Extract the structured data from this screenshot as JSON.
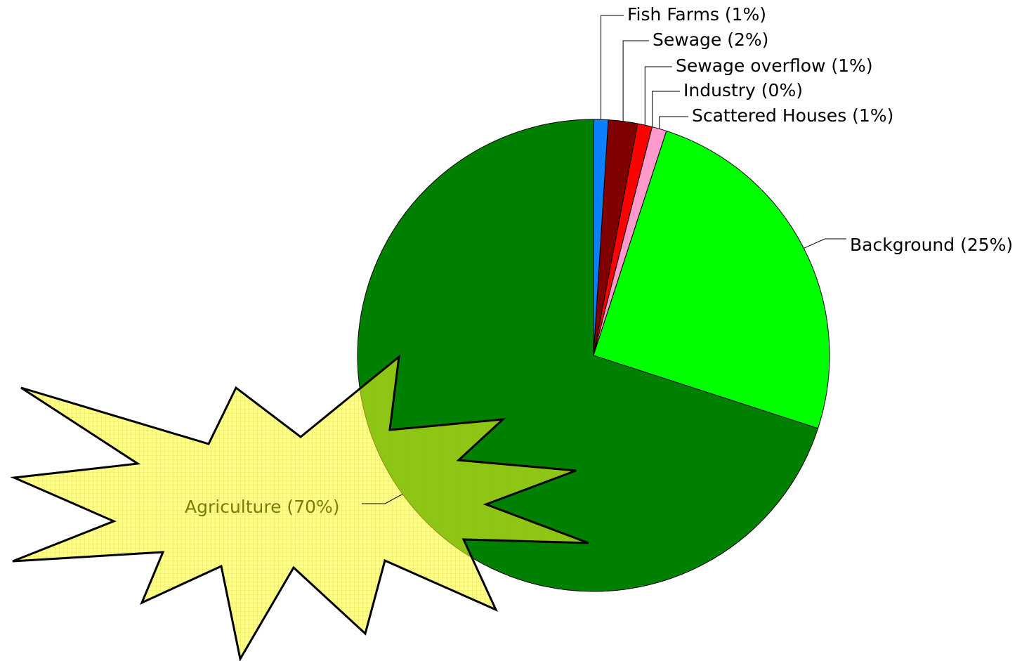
{
  "chart_data": {
    "type": "pie",
    "categories": [
      "Fish Farms (1%)",
      "Sewage (2%)",
      "Sewage overflow (1%)",
      "Industry (0%)",
      "Scattered Houses (1%)",
      "Background (25%)",
      "Agriculture (70%)"
    ],
    "values": [
      1,
      2,
      1,
      0,
      1,
      25,
      70
    ],
    "colors": [
      "#0a80ff",
      "#800000",
      "#ff0000",
      "#ff00ff",
      "#ff99cc",
      "#00ff00",
      "#008000"
    ]
  }
}
